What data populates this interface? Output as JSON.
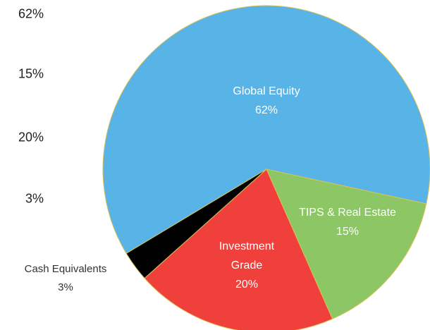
{
  "chart_data": {
    "type": "pie",
    "categories": [
      "Global Equity",
      "TIPS & Real Estate",
      "Investment Grade",
      "Cash Equivalents"
    ],
    "values": [
      62,
      15,
      20,
      3
    ],
    "value_labels": [
      "62%",
      "15%",
      "20%",
      "3%"
    ],
    "colors": [
      "#58b3e6",
      "#8cc665",
      "#f0403c",
      "#000000"
    ]
  }
}
